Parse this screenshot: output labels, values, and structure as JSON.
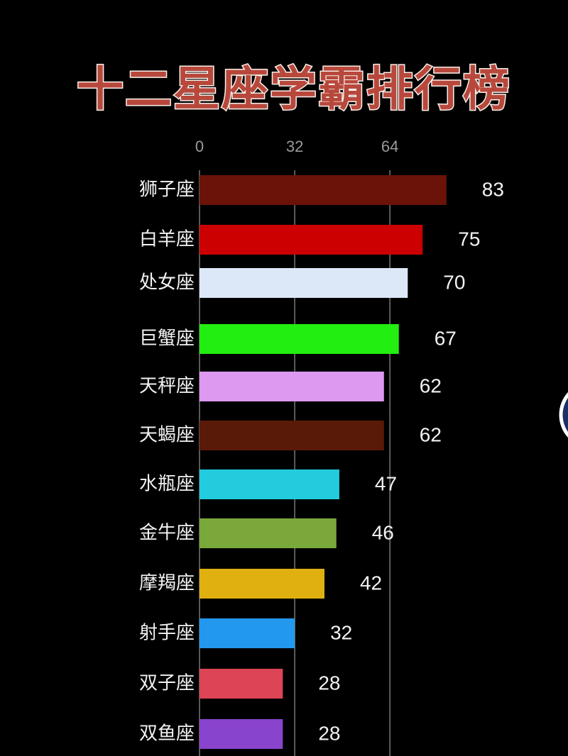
{
  "chart_data": {
    "type": "bar",
    "orientation": "horizontal",
    "title": "十二星座学霸排行榜",
    "x_ticks": [
      0,
      32,
      64
    ],
    "grid": true,
    "bars": [
      {
        "label": "狮子座",
        "value": 83,
        "color": "#6b1308"
      },
      {
        "label": "白羊座",
        "value": 75,
        "color": "#cc0000"
      },
      {
        "label": "处女座",
        "value": 70,
        "color": "#dce8f8"
      },
      {
        "label": "巨蟹座",
        "value": 67,
        "color": "#22ee11"
      },
      {
        "label": "天秤座",
        "value": 62,
        "color": "#dd99f0"
      },
      {
        "label": "天蝎座",
        "value": 62,
        "color": "#5a1a08"
      },
      {
        "label": "水瓶座",
        "value": 47,
        "color": "#22ccdd"
      },
      {
        "label": "金牛座",
        "value": 46,
        "color": "#7aa83a"
      },
      {
        "label": "摩羯座",
        "value": 42,
        "color": "#e0b010"
      },
      {
        "label": "射手座",
        "value": 32,
        "color": "#2299ee"
      },
      {
        "label": "双子座",
        "value": 28,
        "color": "#dd4455"
      },
      {
        "label": "双鱼座",
        "value": 28,
        "color": "#8844cc"
      }
    ]
  }
}
